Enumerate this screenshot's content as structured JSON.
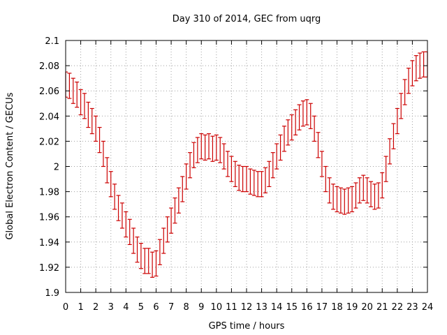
{
  "chart_data": {
    "type": "scatter",
    "title": "Day 310 of 2014, GEC from uqrg",
    "xlabel": "GPS time / hours",
    "ylabel": "Global Electron Content / GECUs",
    "xlim": [
      0,
      24
    ],
    "ylim": [
      1.9,
      2.1
    ],
    "xticks": [
      0,
      1,
      2,
      3,
      4,
      5,
      6,
      7,
      8,
      9,
      10,
      11,
      12,
      13,
      14,
      15,
      16,
      17,
      18,
      19,
      20,
      21,
      22,
      23,
      24
    ],
    "xtick_labels": [
      "0",
      "1",
      "2",
      "3",
      "4",
      "5",
      "6",
      "7",
      "8",
      "9",
      "10",
      "11",
      "12",
      "13",
      "14",
      "15",
      "16",
      "17",
      "18",
      "19",
      "20",
      "21",
      "22",
      "23",
      "24"
    ],
    "yticks": [
      1.9,
      1.92,
      1.94,
      1.96,
      1.98,
      2.0,
      2.02,
      2.04,
      2.06,
      2.08,
      2.1
    ],
    "ytick_labels": [
      "1.9",
      "1.92",
      "1.94",
      "1.96",
      "1.98",
      "2",
      "2.02",
      "2.04",
      "2.06",
      "2.08",
      "2.1"
    ],
    "grid": true,
    "error_half_width": 0.01,
    "series": [
      {
        "color": "#cc0000",
        "x": [
          0,
          0.25,
          0.5,
          0.75,
          1,
          1.25,
          1.5,
          1.75,
          2,
          2.25,
          2.5,
          2.75,
          3,
          3.25,
          3.5,
          3.75,
          4,
          4.25,
          4.5,
          4.75,
          5,
          5.25,
          5.5,
          5.75,
          6,
          6.25,
          6.5,
          6.75,
          7,
          7.25,
          7.5,
          7.75,
          8,
          8.25,
          8.5,
          8.75,
          9,
          9.25,
          9.5,
          9.75,
          10,
          10.25,
          10.5,
          10.75,
          11,
          11.25,
          11.5,
          11.75,
          12,
          12.25,
          12.5,
          12.75,
          13,
          13.25,
          13.5,
          13.75,
          14,
          14.25,
          14.5,
          14.75,
          15,
          15.25,
          15.5,
          15.75,
          16,
          16.25,
          16.5,
          16.75,
          17,
          17.25,
          17.5,
          17.75,
          18,
          18.25,
          18.5,
          18.75,
          19,
          19.25,
          19.5,
          19.75,
          20,
          20.25,
          20.5,
          20.75,
          21,
          21.25,
          21.5,
          21.75,
          22,
          22.25,
          22.5,
          22.75,
          23,
          23.25,
          23.5,
          23.75,
          24
        ],
        "y": [
          2.065,
          2.064,
          2.06,
          2.057,
          2.051,
          2.048,
          2.041,
          2.036,
          2.03,
          2.021,
          2.01,
          1.997,
          1.986,
          1.976,
          1.967,
          1.961,
          1.954,
          1.948,
          1.941,
          1.934,
          1.929,
          1.925,
          1.925,
          1.922,
          1.923,
          1.932,
          1.941,
          1.95,
          1.957,
          1.965,
          1.973,
          1.982,
          1.992,
          2.001,
          2.009,
          2.013,
          2.016,
          2.015,
          2.016,
          2.014,
          2.015,
          2.013,
          2.008,
          2.002,
          1.998,
          1.994,
          1.991,
          1.99,
          1.99,
          1.988,
          1.987,
          1.986,
          1.986,
          1.989,
          1.994,
          2.001,
          2.008,
          2.015,
          2.022,
          2.027,
          2.031,
          2.035,
          2.039,
          2.042,
          2.043,
          2.04,
          2.03,
          2.017,
          2.002,
          1.99,
          1.981,
          1.976,
          1.974,
          1.973,
          1.972,
          1.973,
          1.974,
          1.977,
          1.981,
          1.983,
          1.981,
          1.978,
          1.976,
          1.977,
          1.985,
          1.998,
          2.012,
          2.024,
          2.036,
          2.048,
          2.059,
          2.068,
          2.074,
          2.078,
          2.08,
          2.081,
          2.081
        ]
      }
    ]
  }
}
